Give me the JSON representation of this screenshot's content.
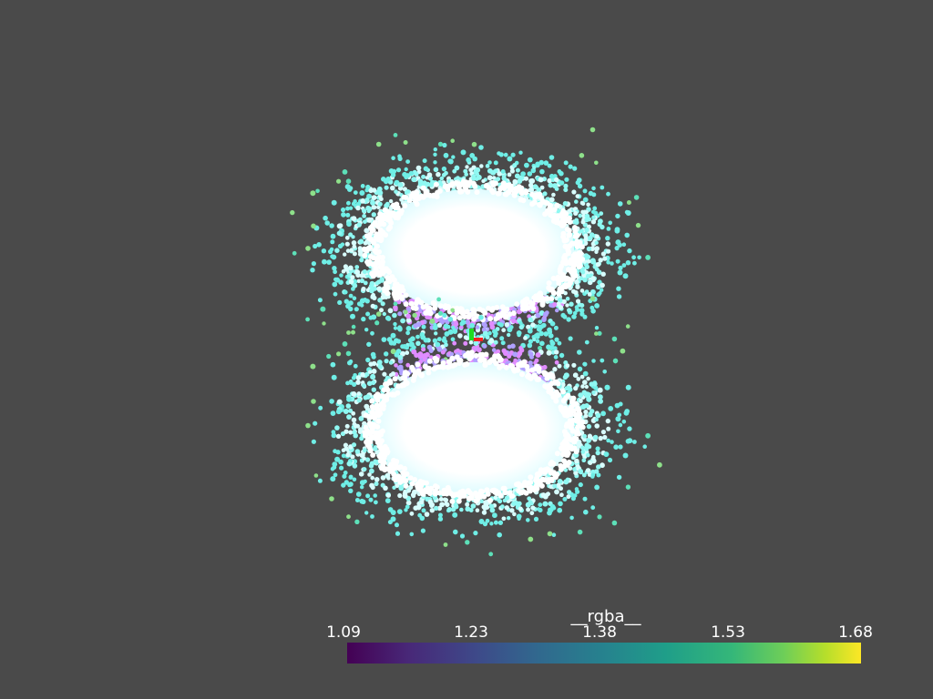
{
  "scalar_bar": {
    "title": "__rgba__",
    "ticks": [
      "1.09",
      "1.23",
      "1.38",
      "1.53",
      "1.68"
    ],
    "colormap": [
      "#440154",
      "#3e4989",
      "#26828e",
      "#35b779",
      "#fde725"
    ]
  },
  "scene": {
    "background": "#4a4a4a",
    "point_colors": [
      "#ffffff",
      "#7ff7f0",
      "#5de0d0",
      "#b0a0ff",
      "#e08cff"
    ],
    "axes_colors": {
      "x": "#ff2020",
      "y": "#20dd20"
    }
  }
}
